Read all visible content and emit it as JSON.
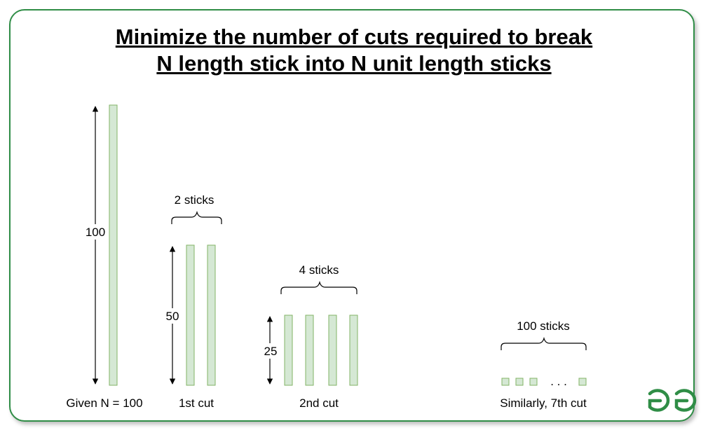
{
  "title": {
    "line1": "Minimize the number of cuts required to break",
    "line2": "N length stick into N unit length sticks"
  },
  "stages": [
    {
      "caption": "Given N = 100",
      "dimension_label": "100",
      "group_label": "",
      "stick_count": 1,
      "stick_length": 100
    },
    {
      "caption": "1st cut",
      "dimension_label": "50",
      "group_label": "2 sticks",
      "stick_count": 2,
      "stick_length": 50
    },
    {
      "caption": "2nd cut",
      "dimension_label": "25",
      "group_label": "4 sticks",
      "stick_count": 4,
      "stick_length": 25
    },
    {
      "caption": "Similarly, 7th cut",
      "dimension_label": "",
      "group_label": "100 sticks",
      "stick_count": 100,
      "stick_length": 1
    }
  ],
  "ellipsis": ". . .",
  "logo": {
    "text": "GfG",
    "color": "#2f8d46"
  },
  "colors": {
    "frame": "#2f8d46",
    "stick_fill": "#d5e8d4",
    "stick_stroke": "#82b366"
  }
}
